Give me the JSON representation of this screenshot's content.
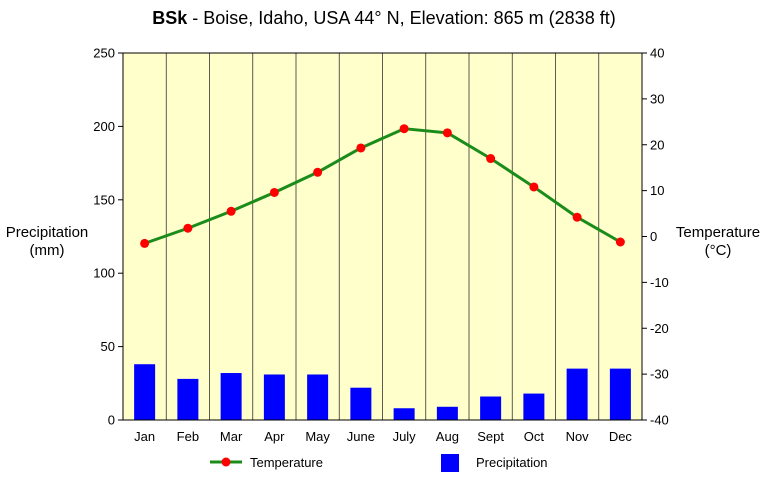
{
  "chart_data": {
    "type": "bar",
    "title": {
      "code": "BSk",
      "rest": " - Boise, Idaho, USA 44° N, Elevation: 865 m (2838 ft)"
    },
    "categories": [
      "Jan",
      "Feb",
      "Mar",
      "Apr",
      "May",
      "June",
      "July",
      "Aug",
      "Sept",
      "Oct",
      "Nov",
      "Dec"
    ],
    "series": [
      {
        "name": "Precipitation",
        "type": "bar",
        "axis": "left",
        "color": "#0000ff",
        "values": [
          38,
          28,
          32,
          31,
          31,
          22,
          8,
          9,
          16,
          18,
          35,
          35
        ]
      },
      {
        "name": "Temperature",
        "type": "line",
        "axis": "right",
        "color": "#1a8c1a",
        "marker_color": "#ff0000",
        "values": [
          -1.5,
          1.8,
          5.5,
          9.6,
          14,
          19.3,
          23.5,
          22.6,
          17,
          10.8,
          4.2,
          -1.2
        ]
      }
    ],
    "left_axis": {
      "label_line1": "Precipitation",
      "label_line2": "(mm)",
      "ylim": [
        0,
        250
      ],
      "ticks": [
        "0",
        "50",
        "100",
        "150",
        "200",
        "250"
      ]
    },
    "right_axis": {
      "label_line1": "Temperature",
      "label_line2": "(°C)",
      "ylim": [
        -40,
        40
      ],
      "ticks": [
        "-40",
        "-30",
        "-20",
        "-10",
        "0",
        "10",
        "20",
        "30",
        "40"
      ]
    },
    "plot_background": "#ffffcc",
    "legend": {
      "placement": "bottom",
      "items": [
        {
          "label": "Temperature",
          "kind": "line"
        },
        {
          "label": "Precipitation",
          "kind": "bar"
        }
      ]
    }
  }
}
